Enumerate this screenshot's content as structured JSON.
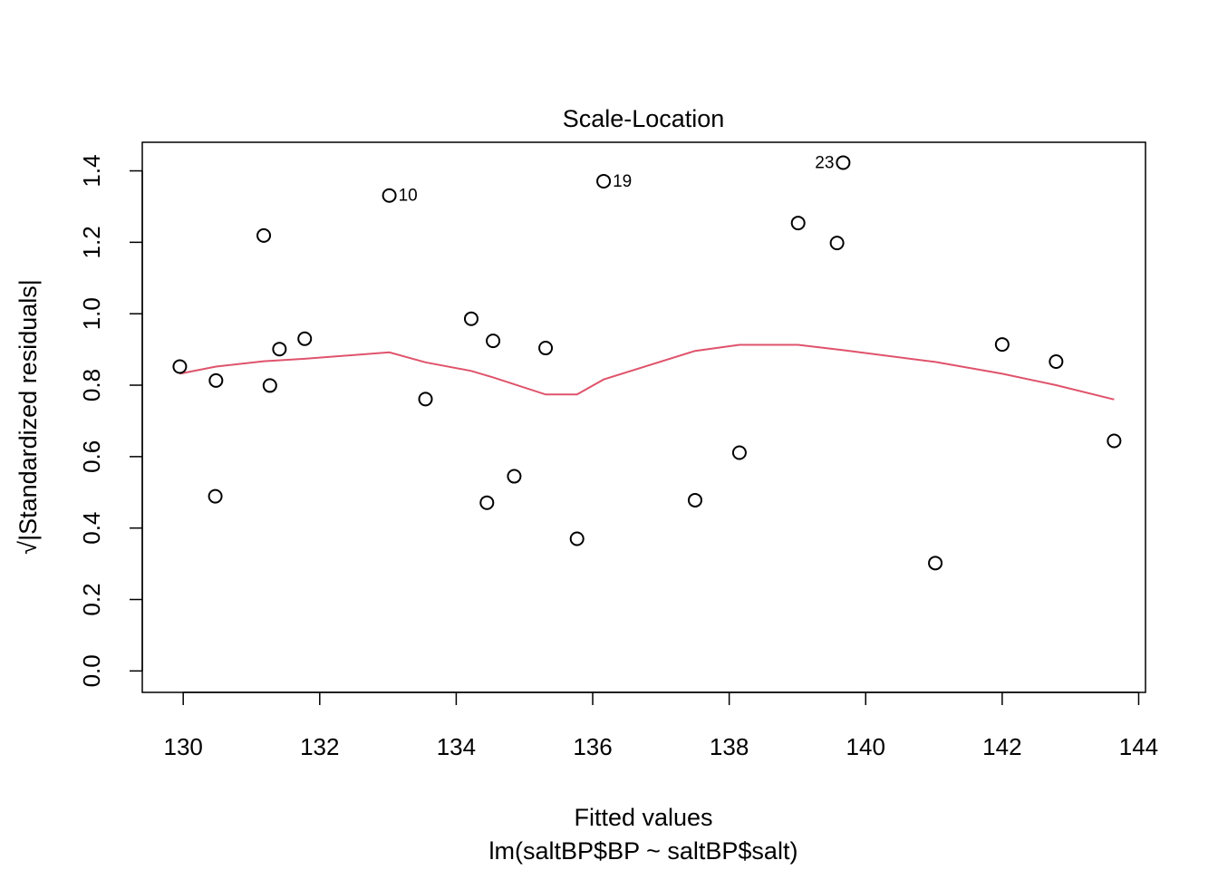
{
  "chart_data": {
    "type": "scatter",
    "title": "Scale-Location",
    "xlabel": "Fitted values",
    "subtitle": "lm(saltBP$BP ~ saltBP$salt)",
    "ylabel": "√|Standardized residuals|",
    "xlim": [
      129.4,
      144.1
    ],
    "ylim": [
      -0.06,
      1.48
    ],
    "xticks": [
      "130",
      "132",
      "134",
      "136",
      "138",
      "140",
      "142",
      "144"
    ],
    "yticks": [
      "0.0",
      "0.2",
      "0.4",
      "0.6",
      "0.8",
      "1.0",
      "1.2",
      "1.4"
    ],
    "grid": false,
    "points": [
      {
        "x": 129.95,
        "y": 0.852
      },
      {
        "x": 130.48,
        "y": 0.813
      },
      {
        "x": 130.47,
        "y": 0.489
      },
      {
        "x": 131.18,
        "y": 1.219
      },
      {
        "x": 131.27,
        "y": 0.799
      },
      {
        "x": 131.41,
        "y": 0.901
      },
      {
        "x": 131.78,
        "y": 0.93
      },
      {
        "x": 133.02,
        "y": 1.331,
        "label": "10"
      },
      {
        "x": 133.55,
        "y": 0.761
      },
      {
        "x": 134.22,
        "y": 0.986
      },
      {
        "x": 134.45,
        "y": 0.471
      },
      {
        "x": 134.54,
        "y": 0.924
      },
      {
        "x": 134.85,
        "y": 0.545
      },
      {
        "x": 135.31,
        "y": 0.904
      },
      {
        "x": 135.77,
        "y": 0.37
      },
      {
        "x": 136.16,
        "y": 1.371,
        "label": "19"
      },
      {
        "x": 137.5,
        "y": 0.478
      },
      {
        "x": 138.15,
        "y": 0.611
      },
      {
        "x": 139.01,
        "y": 1.254
      },
      {
        "x": 139.58,
        "y": 1.198
      },
      {
        "x": 139.67,
        "y": 1.423,
        "label": "23"
      },
      {
        "x": 141.02,
        "y": 0.302
      },
      {
        "x": 142.0,
        "y": 0.914
      },
      {
        "x": 142.79,
        "y": 0.866
      },
      {
        "x": 143.64,
        "y": 0.644
      }
    ],
    "smooth_line": {
      "color": "#DF536B",
      "x": [
        129.95,
        130.48,
        131.18,
        131.78,
        133.02,
        133.55,
        134.22,
        134.54,
        135.31,
        135.77,
        136.16,
        137.5,
        138.15,
        139.01,
        139.67,
        141.02,
        142.0,
        142.79,
        143.64
      ],
      "y": [
        0.832,
        0.852,
        0.867,
        0.874,
        0.892,
        0.864,
        0.84,
        0.822,
        0.774,
        0.774,
        0.816,
        0.896,
        0.913,
        0.913,
        0.898,
        0.865,
        0.832,
        0.8,
        0.76
      ]
    }
  }
}
